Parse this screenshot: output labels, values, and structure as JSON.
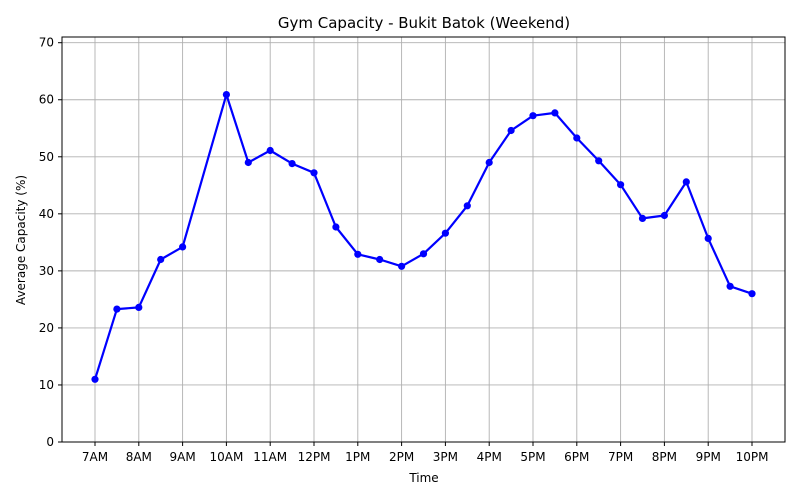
{
  "chart_data": {
    "type": "line",
    "title": "Gym Capacity - Bukit Batok (Weekend)",
    "xlabel": "Time",
    "ylabel": "Average Capacity (%)",
    "ylim": [
      0,
      71
    ],
    "yticks": [
      0,
      10,
      20,
      30,
      40,
      50,
      60,
      70
    ],
    "xtick_labels": [
      "7AM",
      "8AM",
      "9AM",
      "10AM",
      "11AM",
      "12PM",
      "1PM",
      "2PM",
      "3PM",
      "4PM",
      "5PM",
      "6PM",
      "7PM",
      "8PM",
      "9PM",
      "10PM"
    ],
    "grid": true,
    "series": [
      {
        "color": "#0000ff",
        "x": [
          "7:00 AM",
          "7:30 AM",
          "8:00 AM",
          "8:30 AM",
          "9:00 AM",
          "10:00 AM",
          "10:30 AM",
          "11:00 AM",
          "11:30 AM",
          "12:00 PM",
          "12:30 PM",
          "1:00 PM",
          "1:30 PM",
          "2:00 PM",
          "2:30 PM",
          "3:00 PM",
          "3:30 PM",
          "4:00 PM",
          "4:30 PM",
          "5:00 PM",
          "5:30 PM",
          "6:00 PM",
          "6:30 PM",
          "7:00 PM",
          "7:30 PM",
          "8:00 PM",
          "8:30 PM",
          "9:00 PM",
          "9:30 PM",
          "10:00 PM"
        ],
        "values": [
          11.0,
          23.3,
          23.6,
          32.0,
          34.2,
          60.9,
          49.0,
          51.1,
          48.8,
          47.2,
          37.7,
          32.9,
          32.0,
          30.8,
          33.0,
          36.6,
          41.4,
          49.0,
          54.6,
          57.2,
          57.7,
          53.3,
          49.3,
          45.1,
          39.2,
          39.7,
          45.6,
          35.7,
          27.3,
          26.0
        ]
      }
    ]
  }
}
